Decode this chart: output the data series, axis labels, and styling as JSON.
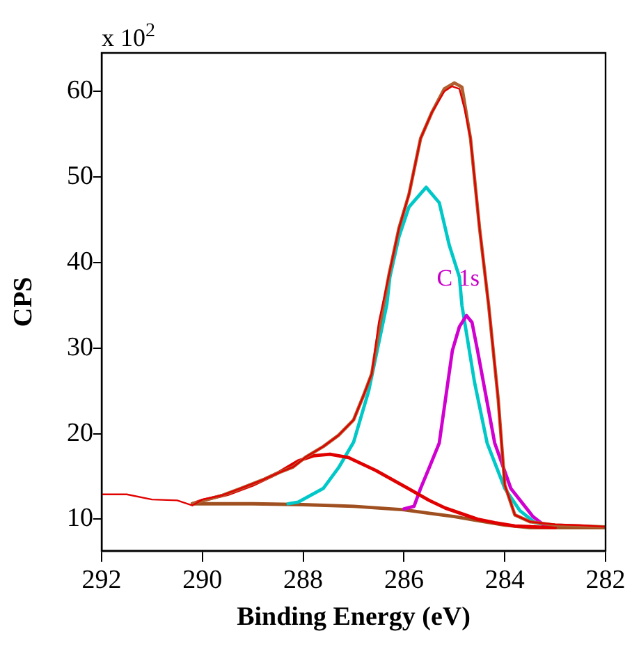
{
  "chart_data": {
    "type": "line",
    "xlabel": "Binding Energy (eV)",
    "ylabel": "CPS",
    "xlim": [
      292,
      282
    ],
    "xticks": [
      292,
      290,
      288,
      286,
      284,
      282
    ],
    "ylim": [
      6.3,
      64.5
    ],
    "yticks": [
      10,
      20,
      30,
      40,
      50,
      60
    ],
    "grid": false,
    "legend": false,
    "marker": "none",
    "line_style": "solid",
    "annotations": [
      "x 10$^{2}$",
      {
        "text": "C 1s",
        "x": 284.5,
        "y": 37.3
      }
    ],
    "series": [
      {
        "color": "#a05020",
        "x": [
          290.2,
          289,
          288,
          287,
          286.5,
          286,
          285.5,
          285,
          284.5,
          284,
          283.5,
          283,
          282
        ],
        "values": [
          11.8,
          11.8,
          11.7,
          11.5,
          11.3,
          11.1,
          10.7,
          10.3,
          9.8,
          9.3,
          9.0,
          9.0,
          9.0
        ]
      },
      {
        "color": "#00c8c8",
        "x": [
          288.3,
          288.1,
          287.6,
          287.3,
          287.0,
          286.7,
          286.34,
          286.28,
          286.1,
          285.9,
          285.56,
          285.3,
          285.1,
          284.9,
          284.85,
          284.6,
          284.35,
          284.0,
          283.7,
          283.4,
          283.0
        ],
        "values": [
          11.8,
          12,
          13.6,
          16,
          19,
          25,
          35.1,
          38.3,
          43,
          46.5,
          48.8,
          47,
          42,
          38.3,
          35,
          26,
          18.9,
          13.6,
          11,
          9.6,
          9.1
        ]
      },
      {
        "color": "#d000d0",
        "x": [
          286.0,
          285.8,
          285.67,
          285.5,
          285.3,
          285.04,
          284.9,
          284.76,
          284.65,
          284.54,
          284.2,
          283.88,
          283.44,
          283.2,
          283.0
        ],
        "values": [
          11.2,
          11.5,
          13.6,
          16,
          18.9,
          29.7,
          32.5,
          33.8,
          33,
          29.7,
          18.9,
          13.6,
          10.3,
          9.2,
          9.1
        ]
      },
      {
        "color": "#e00000",
        "x": [
          290.2,
          290,
          289.5,
          289,
          288.5,
          288.1,
          287.8,
          287.47,
          287.1,
          286.56,
          285.92,
          285.5,
          285.18,
          284.54,
          284.2,
          283.8,
          283.4,
          283.0
        ],
        "values": [
          11.8,
          12.2,
          12.9,
          14,
          15.4,
          16.8,
          17.4,
          17.6,
          17.2,
          15.7,
          13.6,
          12.2,
          11.3,
          10,
          9.6,
          9.2,
          9.1,
          9.0
        ]
      },
      {
        "color": "#b06030",
        "x": [
          290.2,
          289.6,
          289.24,
          288.8,
          288.5,
          288.2,
          287.94,
          287.6,
          287.3,
          287.0,
          286.8,
          286.64,
          286.5,
          286.3,
          286.1,
          285.9,
          285.67,
          285.45,
          285.2,
          285.0,
          284.85,
          284.68,
          284.5,
          284.32,
          284.13,
          284.0,
          283.8,
          283.5,
          283.0,
          282.5,
          282.0
        ],
        "values": [
          11.8,
          12.8,
          13.6,
          14.6,
          15.4,
          16.1,
          17.3,
          18.5,
          19.8,
          21.6,
          24.5,
          27,
          32,
          38.5,
          44,
          48,
          54.5,
          57.5,
          60.3,
          61,
          60.5,
          54.5,
          44,
          35,
          24,
          14,
          10.5,
          9.7,
          9.3,
          9.2,
          9.1
        ]
      },
      {
        "color": "#e00000",
        "x": [
          292,
          291.5,
          291,
          290.5,
          290.2,
          290,
          289.6,
          289.24,
          288.8,
          288.5,
          288.2,
          287.94,
          287.6,
          287.3,
          287.0,
          286.8,
          286.64,
          286.5,
          286.3,
          286.1,
          285.9,
          285.67,
          285.45,
          285.2,
          285.05,
          284.9,
          284.8,
          284.68,
          284.5,
          284.32,
          284.13,
          284.0,
          283.8,
          283.5,
          283.2,
          283.0,
          282.5,
          282.0
        ],
        "values": [
          12.9,
          12.9,
          12.3,
          12.2,
          11.6,
          12.3,
          12.8,
          13.6,
          14.6,
          15.4,
          16.1,
          17.3,
          18.5,
          19.8,
          21.6,
          24.5,
          27,
          33,
          38.5,
          44,
          48,
          54.5,
          57.5,
          60,
          60.6,
          60.3,
          58,
          54.5,
          44,
          35,
          24,
          14,
          10.5,
          9.7,
          9.5,
          9.4,
          9.3,
          9.1
        ]
      }
    ]
  }
}
